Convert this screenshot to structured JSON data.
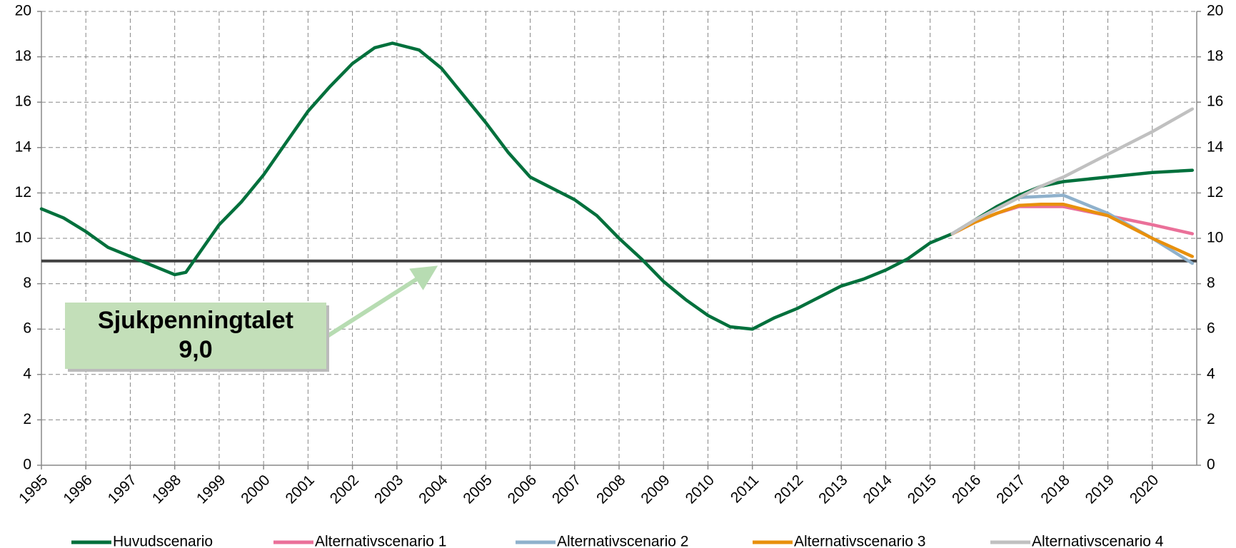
{
  "chart_data": {
    "type": "line",
    "x": [
      1995.0,
      1995.5,
      1996.0,
      1996.5,
      1997.0,
      1997.5,
      1998.0,
      1998.25,
      1998.5,
      1999.0,
      1999.5,
      2000.0,
      2000.5,
      2001.0,
      2001.5,
      2002.0,
      2002.5,
      2002.9,
      2003.5,
      2004.0,
      2004.5,
      2005.0,
      2005.5,
      2006.0,
      2006.5,
      2007.0,
      2007.5,
      2008.0,
      2008.5,
      2009.0,
      2009.5,
      2010.0,
      2010.5,
      2011.0,
      2011.5,
      2012.0,
      2012.5,
      2013.0,
      2013.5,
      2014.0,
      2014.5,
      2015.0,
      2015.5,
      2016.0,
      2016.5,
      2017.0,
      2017.5,
      2018.0,
      2019.0,
      2020.0,
      2020.9
    ],
    "series": [
      {
        "name": "Huvudscenario",
        "color": "#00703c",
        "values": [
          11.3,
          10.9,
          10.3,
          9.6,
          9.2,
          8.8,
          8.4,
          8.5,
          9.2,
          10.6,
          11.6,
          12.8,
          14.2,
          15.6,
          16.7,
          17.7,
          18.4,
          18.6,
          18.3,
          17.5,
          16.3,
          15.1,
          13.8,
          12.7,
          12.2,
          11.7,
          11.0,
          10.0,
          9.1,
          8.1,
          7.3,
          6.6,
          6.1,
          6.0,
          6.5,
          6.9,
          7.4,
          7.9,
          8.2,
          8.6,
          9.1,
          9.8,
          10.2,
          10.8,
          11.4,
          11.9,
          12.3,
          12.5,
          12.7,
          12.9,
          13.0
        ]
      },
      {
        "name": "Alternativscenario 1",
        "color": "#ea7099",
        "values": [
          null,
          null,
          null,
          null,
          null,
          null,
          null,
          null,
          null,
          null,
          null,
          null,
          null,
          null,
          null,
          null,
          null,
          null,
          null,
          null,
          null,
          null,
          null,
          null,
          null,
          null,
          null,
          null,
          null,
          null,
          null,
          null,
          null,
          null,
          null,
          null,
          null,
          null,
          null,
          null,
          null,
          null,
          10.2,
          10.7,
          11.1,
          11.4,
          11.4,
          11.4,
          11.0,
          10.6,
          10.2
        ]
      },
      {
        "name": "Alternativscenario 2",
        "color": "#8fb1cc",
        "values": [
          null,
          null,
          null,
          null,
          null,
          null,
          null,
          null,
          null,
          null,
          null,
          null,
          null,
          null,
          null,
          null,
          null,
          null,
          null,
          null,
          null,
          null,
          null,
          null,
          null,
          null,
          null,
          null,
          null,
          null,
          null,
          null,
          null,
          null,
          null,
          null,
          null,
          null,
          null,
          null,
          null,
          null,
          10.2,
          10.8,
          11.3,
          11.8,
          11.85,
          11.9,
          11.1,
          10.0,
          8.9
        ]
      },
      {
        "name": "Alternativscenario 3",
        "color": "#e8900c",
        "values": [
          null,
          null,
          null,
          null,
          null,
          null,
          null,
          null,
          null,
          null,
          null,
          null,
          null,
          null,
          null,
          null,
          null,
          null,
          null,
          null,
          null,
          null,
          null,
          null,
          null,
          null,
          null,
          null,
          null,
          null,
          null,
          null,
          null,
          null,
          null,
          null,
          null,
          null,
          null,
          null,
          null,
          null,
          10.2,
          10.7,
          11.1,
          11.45,
          11.5,
          11.5,
          11.0,
          10.0,
          9.2
        ]
      },
      {
        "name": "Alternativscenario 4",
        "color": "#c0c0c0",
        "values": [
          null,
          null,
          null,
          null,
          null,
          null,
          null,
          null,
          null,
          null,
          null,
          null,
          null,
          null,
          null,
          null,
          null,
          null,
          null,
          null,
          null,
          null,
          null,
          null,
          null,
          null,
          null,
          null,
          null,
          null,
          null,
          null,
          null,
          null,
          null,
          null,
          null,
          null,
          null,
          null,
          null,
          null,
          10.2,
          10.8,
          11.3,
          11.8,
          12.3,
          12.7,
          13.7,
          14.7,
          15.7
        ]
      }
    ],
    "xlim": [
      1995,
      2021
    ],
    "xticks": [
      1995,
      1996,
      1997,
      1998,
      1999,
      2000,
      2001,
      2002,
      2003,
      2004,
      2005,
      2006,
      2007,
      2008,
      2009,
      2010,
      2011,
      2012,
      2013,
      2014,
      2015,
      2016,
      2017,
      2018,
      2019,
      2020
    ],
    "ylim": [
      0,
      20
    ],
    "yticks": [
      0,
      2,
      4,
      6,
      8,
      10,
      12,
      14,
      16,
      18,
      20
    ],
    "y2lim": [
      0,
      20
    ],
    "y2ticks": [
      0,
      2,
      4,
      6,
      8,
      10,
      12,
      14,
      16,
      18,
      20
    ],
    "grid": true,
    "legend": "bottom",
    "annotation": {
      "label": "Sjukpenningtalet",
      "value": 9,
      "value_label": "9,0",
      "line_color": "#404040",
      "box_color": "#c3dfb9",
      "arrow_color": "#b7dcb2"
    }
  }
}
